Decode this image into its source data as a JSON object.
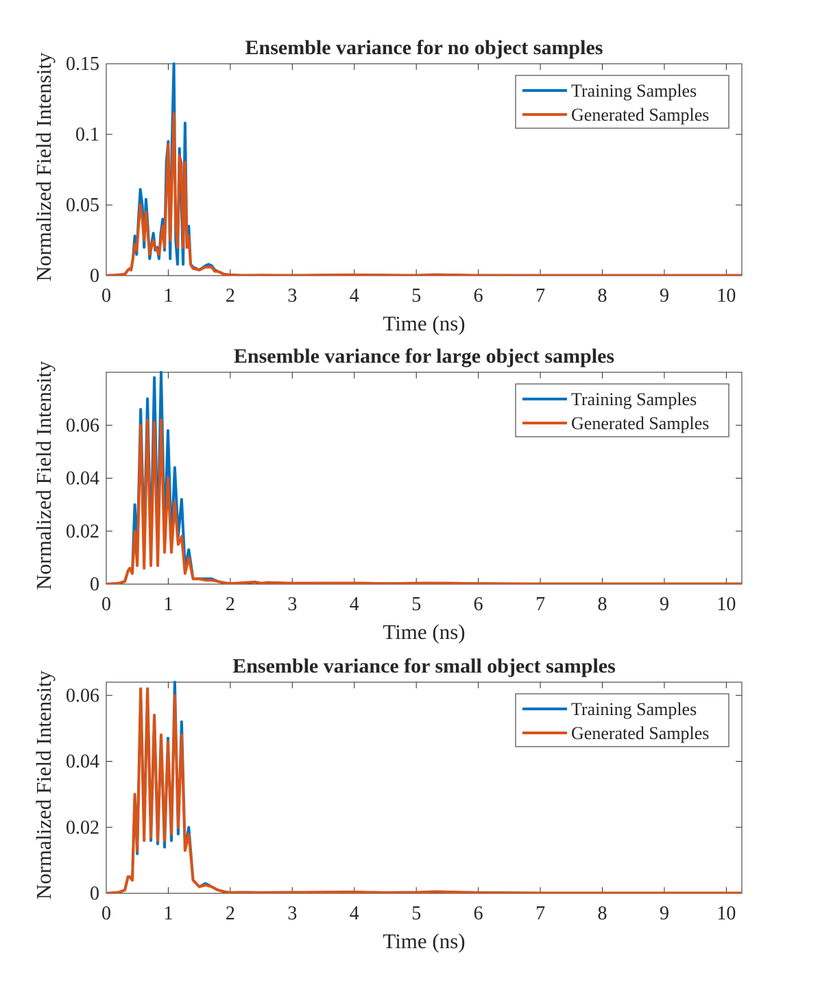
{
  "chart_data": [
    {
      "type": "line",
      "title": "Ensemble variance for no object samples",
      "xlabel": "Time (ns)",
      "ylabel": "Normalized Field Intensity",
      "xlim": [
        0,
        10.25
      ],
      "ylim": [
        0,
        0.15
      ],
      "xticks": [
        0,
        1,
        2,
        3,
        4,
        5,
        6,
        7,
        8,
        9,
        10
      ],
      "xticklabels": [
        "0",
        "1",
        "2",
        "3",
        "4",
        "5",
        "6",
        "7",
        "8",
        "9",
        "10"
      ],
      "yticks": [
        0,
        0.05,
        0.1,
        0.15
      ],
      "yticklabels": [
        "0",
        "0.05",
        "0.1",
        "0.15"
      ],
      "legend": {
        "position": "top-right",
        "entries": [
          "Training Samples",
          "Generated Samples"
        ]
      },
      "series": [
        {
          "name": "Training Samples",
          "color": "#0072BD",
          "x": [
            0,
            0.2,
            0.3,
            0.35,
            0.38,
            0.4,
            0.43,
            0.46,
            0.49,
            0.52,
            0.55,
            0.58,
            0.61,
            0.64,
            0.67,
            0.7,
            0.73,
            0.76,
            0.79,
            0.82,
            0.85,
            0.88,
            0.91,
            0.94,
            0.97,
            1.0,
            1.03,
            1.06,
            1.09,
            1.12,
            1.15,
            1.18,
            1.21,
            1.24,
            1.27,
            1.3,
            1.33,
            1.36,
            1.4,
            1.5,
            1.6,
            1.65,
            1.7,
            1.75,
            1.8,
            1.9,
            2.0,
            2.2,
            2.5,
            3.0,
            4.0,
            5.0,
            5.3,
            6.0,
            7.0,
            8.0,
            9.0,
            10.0,
            10.25
          ],
          "y": [
            0,
            0.0005,
            0.001,
            0.004,
            0.005,
            0.004,
            0.012,
            0.028,
            0.015,
            0.04,
            0.061,
            0.05,
            0.02,
            0.054,
            0.035,
            0.012,
            0.022,
            0.03,
            0.018,
            0.02,
            0.012,
            0.03,
            0.04,
            0.018,
            0.08,
            0.095,
            0.012,
            0.095,
            0.15,
            0.025,
            0.008,
            0.09,
            0.055,
            0.008,
            0.108,
            0.02,
            0.035,
            0.008,
            0.006,
            0.004,
            0.007,
            0.008,
            0.007,
            0.004,
            0.003,
            0.001,
            0.0005,
            0.0002,
            0.0003,
            0.0002,
            0.0005,
            0.0002,
            0.0006,
            0.0002,
            0.0001,
            0.0001,
            0.0001,
            0.0001,
            0.0001
          ]
        },
        {
          "name": "Generated Samples",
          "color": "#D95319",
          "x": [
            0,
            0.2,
            0.3,
            0.35,
            0.38,
            0.4,
            0.43,
            0.46,
            0.49,
            0.52,
            0.55,
            0.58,
            0.61,
            0.64,
            0.67,
            0.7,
            0.73,
            0.76,
            0.79,
            0.82,
            0.85,
            0.88,
            0.91,
            0.94,
            0.97,
            1.0,
            1.03,
            1.06,
            1.09,
            1.12,
            1.15,
            1.18,
            1.21,
            1.24,
            1.27,
            1.3,
            1.33,
            1.36,
            1.4,
            1.5,
            1.6,
            1.65,
            1.7,
            1.75,
            1.8,
            1.9,
            2.0,
            2.2,
            2.5,
            3.0,
            4.0,
            5.0,
            5.3,
            6.0,
            7.0,
            8.0,
            9.0,
            10.0,
            10.25
          ],
          "y": [
            0,
            0.0005,
            0.001,
            0.004,
            0.005,
            0.004,
            0.012,
            0.022,
            0.018,
            0.035,
            0.05,
            0.04,
            0.025,
            0.045,
            0.03,
            0.015,
            0.02,
            0.025,
            0.02,
            0.018,
            0.015,
            0.025,
            0.035,
            0.02,
            0.06,
            0.093,
            0.025,
            0.07,
            0.115,
            0.035,
            0.02,
            0.085,
            0.08,
            0.02,
            0.08,
            0.02,
            0.028,
            0.008,
            0.005,
            0.004,
            0.006,
            0.006,
            0.006,
            0.003,
            0.003,
            0.001,
            0.0005,
            0.0002,
            0.0003,
            0.0002,
            0.0005,
            0.0002,
            0.0006,
            0.0002,
            0.0001,
            0.0001,
            0.0001,
            0.0001,
            0.0001
          ]
        }
      ]
    },
    {
      "type": "line",
      "title": "Ensemble variance for large object samples",
      "xlabel": "Time (ns)",
      "ylabel": "Normalized Field Intensity",
      "xlim": [
        0,
        10.25
      ],
      "ylim": [
        0,
        0.08
      ],
      "xticks": [
        0,
        1,
        2,
        3,
        4,
        5,
        6,
        7,
        8,
        9,
        10
      ],
      "xticklabels": [
        "0",
        "1",
        "2",
        "3",
        "4",
        "5",
        "6",
        "7",
        "8",
        "9",
        "10"
      ],
      "yticks": [
        0,
        0.02,
        0.04,
        0.06
      ],
      "yticklabels": [
        "0",
        "0.02",
        "0.04",
        "0.06"
      ],
      "legend": {
        "position": "top-right",
        "entries": [
          "Training Samples",
          "Generated Samples"
        ]
      },
      "series": [
        {
          "name": "Training Samples",
          "color": "#0072BD",
          "x": [
            0,
            0.2,
            0.3,
            0.35,
            0.38,
            0.42,
            0.46,
            0.5,
            0.555,
            0.61,
            0.665,
            0.72,
            0.775,
            0.83,
            0.885,
            0.94,
            0.995,
            1.05,
            1.105,
            1.16,
            1.215,
            1.27,
            1.33,
            1.4,
            1.5,
            1.6,
            1.7,
            1.8,
            1.9,
            2.0,
            2.2,
            2.4,
            2.5,
            2.6,
            3.0,
            4.0,
            4.5,
            5.0,
            5.3,
            6.0,
            7.0,
            8.0,
            9.0,
            10.0,
            10.25
          ],
          "y": [
            0,
            0.0003,
            0.001,
            0.005,
            0.006,
            0.004,
            0.03,
            0.012,
            0.066,
            0.015,
            0.07,
            0.012,
            0.078,
            0.015,
            0.08,
            0.018,
            0.058,
            0.015,
            0.044,
            0.018,
            0.032,
            0.006,
            0.013,
            0.002,
            0.002,
            0.002,
            0.002,
            0.001,
            0.0005,
            0.0002,
            0.0005,
            0.0008,
            0.0003,
            0.0006,
            0.0003,
            0.0004,
            0.0002,
            0.0003,
            0.0004,
            0.0002,
            0.0001,
            0.0001,
            0.0001,
            0.0001,
            0.0001
          ]
        },
        {
          "name": "Generated Samples",
          "color": "#D95319",
          "x": [
            0,
            0.2,
            0.3,
            0.35,
            0.38,
            0.42,
            0.46,
            0.5,
            0.555,
            0.61,
            0.665,
            0.72,
            0.775,
            0.83,
            0.885,
            0.94,
            0.995,
            1.05,
            1.105,
            1.16,
            1.215,
            1.27,
            1.33,
            1.4,
            1.5,
            1.6,
            1.7,
            1.8,
            1.9,
            2.0,
            2.2,
            2.4,
            2.5,
            2.6,
            3.0,
            4.0,
            4.5,
            5.0,
            5.3,
            6.0,
            7.0,
            8.0,
            9.0,
            10.0,
            10.25
          ],
          "y": [
            0,
            0.0003,
            0.001,
            0.005,
            0.006,
            0.004,
            0.02,
            0.007,
            0.06,
            0.006,
            0.062,
            0.007,
            0.061,
            0.007,
            0.062,
            0.012,
            0.04,
            0.012,
            0.031,
            0.015,
            0.018,
            0.004,
            0.01,
            0.002,
            0.002,
            0.0015,
            0.0015,
            0.001,
            0.0005,
            0.0002,
            0.0005,
            0.0008,
            0.0003,
            0.0006,
            0.0003,
            0.0004,
            0.0002,
            0.0003,
            0.0004,
            0.0002,
            0.0001,
            0.0001,
            0.0001,
            0.0001,
            0.0001
          ]
        }
      ]
    },
    {
      "type": "line",
      "title": "Ensemble variance for small object samples",
      "xlabel": "Time (ns)",
      "ylabel": "Normalized Field Intensity",
      "xlim": [
        0,
        10.25
      ],
      "ylim": [
        0,
        0.064
      ],
      "xticks": [
        0,
        1,
        2,
        3,
        4,
        5,
        6,
        7,
        8,
        9,
        10
      ],
      "xticklabels": [
        "0",
        "1",
        "2",
        "3",
        "4",
        "5",
        "6",
        "7",
        "8",
        "9",
        "10"
      ],
      "yticks": [
        0,
        0.02,
        0.04,
        0.06
      ],
      "yticklabels": [
        "0",
        "0.02",
        "0.04",
        "0.06"
      ],
      "legend": {
        "position": "top-right",
        "entries": [
          "Training Samples",
          "Generated Samples"
        ]
      },
      "series": [
        {
          "name": "Training Samples",
          "color": "#0072BD",
          "x": [
            0,
            0.2,
            0.3,
            0.35,
            0.38,
            0.42,
            0.46,
            0.5,
            0.555,
            0.61,
            0.665,
            0.72,
            0.775,
            0.83,
            0.885,
            0.94,
            0.995,
            1.05,
            1.105,
            1.16,
            1.215,
            1.27,
            1.33,
            1.4,
            1.5,
            1.6,
            1.7,
            1.8,
            1.9,
            2.0,
            2.2,
            2.5,
            3.0,
            4.0,
            4.5,
            5.0,
            5.3,
            6.0,
            7.0,
            8.0,
            9.0,
            10.0,
            10.25
          ],
          "y": [
            0,
            0.0003,
            0.001,
            0.005,
            0.005,
            0.004,
            0.03,
            0.012,
            0.062,
            0.018,
            0.062,
            0.016,
            0.054,
            0.015,
            0.048,
            0.014,
            0.047,
            0.016,
            0.064,
            0.018,
            0.052,
            0.013,
            0.02,
            0.004,
            0.002,
            0.003,
            0.002,
            0.001,
            0.0005,
            0.0002,
            0.0003,
            0.0002,
            0.0003,
            0.0004,
            0.0002,
            0.0003,
            0.0005,
            0.0002,
            0.0001,
            0.0001,
            0.0001,
            0.0001,
            0.0001
          ]
        },
        {
          "name": "Generated Samples",
          "color": "#D95319",
          "x": [
            0,
            0.2,
            0.3,
            0.35,
            0.38,
            0.42,
            0.46,
            0.5,
            0.555,
            0.61,
            0.665,
            0.72,
            0.775,
            0.83,
            0.885,
            0.94,
            0.995,
            1.05,
            1.105,
            1.16,
            1.215,
            1.27,
            1.33,
            1.4,
            1.5,
            1.6,
            1.7,
            1.8,
            1.9,
            2.0,
            2.2,
            2.5,
            3.0,
            4.0,
            4.5,
            5.0,
            5.3,
            6.0,
            7.0,
            8.0,
            9.0,
            10.0,
            10.25
          ],
          "y": [
            0,
            0.0003,
            0.001,
            0.005,
            0.005,
            0.004,
            0.03,
            0.013,
            0.062,
            0.016,
            0.062,
            0.017,
            0.054,
            0.016,
            0.048,
            0.016,
            0.046,
            0.018,
            0.06,
            0.02,
            0.048,
            0.013,
            0.018,
            0.004,
            0.002,
            0.0025,
            0.002,
            0.001,
            0.0005,
            0.0002,
            0.0003,
            0.0002,
            0.0003,
            0.0004,
            0.0002,
            0.0003,
            0.0005,
            0.0002,
            0.0001,
            0.0001,
            0.0001,
            0.0001,
            0.0001
          ]
        }
      ]
    }
  ]
}
